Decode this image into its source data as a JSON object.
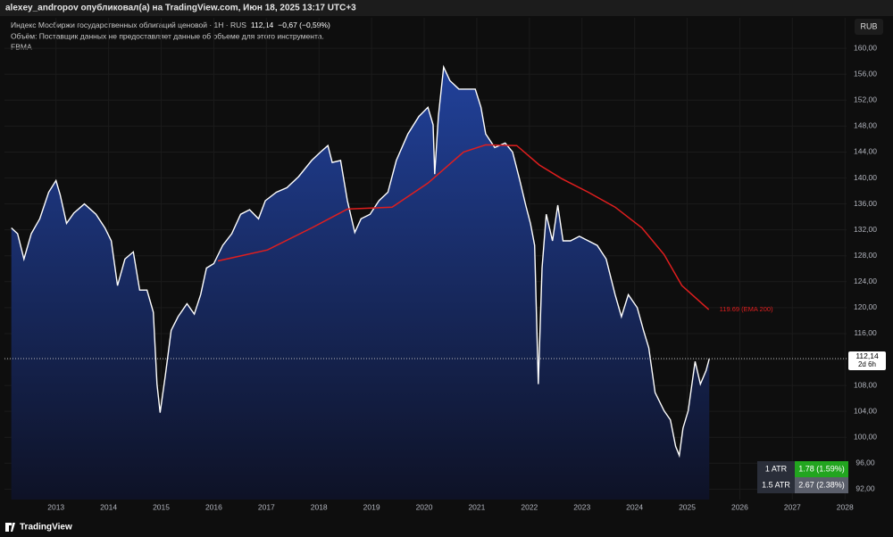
{
  "header": {
    "publisher": "alexey_andropov опубликовал(а) на TradingView.com, Июн 18, 2025 13:17 UTC+3"
  },
  "chart_data": {
    "type": "area",
    "title": "Индекс Мосбиржи государственных облигаций ценовой · 1H · RUS",
    "last_price": "112,14",
    "change": "−0,67 (−0,59%)",
    "subtitle": "Объём: Поставщик данных не предоставляет данные об объеме для этого инструмента.",
    "indicator": "FBMA",
    "currency": "RUB",
    "xlim": [
      2012.02,
      2028.03
    ],
    "xticks": [
      2013,
      2014,
      2015,
      2016,
      2017,
      2018,
      2019,
      2020,
      2021,
      2022,
      2023,
      2024,
      2025,
      2026,
      2027,
      2028
    ],
    "ylim": [
      90.4,
      164.7
    ],
    "yticks": [
      {
        "value": 92,
        "label": "92,00"
      },
      {
        "value": 96,
        "label": "96,00"
      },
      {
        "value": 100,
        "label": "100,00"
      },
      {
        "value": 104,
        "label": "104,00"
      },
      {
        "value": 108,
        "label": "108,00"
      },
      {
        "value": 112,
        "label": "112,00"
      },
      {
        "value": 116,
        "label": "116,00"
      },
      {
        "value": 120,
        "label": "120,00"
      },
      {
        "value": 124,
        "label": "124,00"
      },
      {
        "value": 128,
        "label": "128,00"
      },
      {
        "value": 132,
        "label": "132,00"
      },
      {
        "value": 136,
        "label": "136,00"
      },
      {
        "value": 140,
        "label": "140,00"
      },
      {
        "value": 144,
        "label": "144,00"
      },
      {
        "value": 148,
        "label": "148,00"
      },
      {
        "value": 152,
        "label": "152,00"
      },
      {
        "value": 156,
        "label": "156,00"
      },
      {
        "value": 160,
        "label": "160,00"
      }
    ],
    "grid": true,
    "series": [
      {
        "color": "#ffffff",
        "fill": "#1f3a8f",
        "x": [
          2012.15,
          2012.27,
          2012.39,
          2012.53,
          2012.69,
          2012.86,
          2013.0,
          2013.08,
          2013.2,
          2013.34,
          2013.54,
          2013.76,
          2013.93,
          2014.05,
          2014.17,
          2014.31,
          2014.47,
          2014.59,
          2014.73,
          2014.85,
          2014.92,
          2014.98,
          2015.08,
          2015.19,
          2015.32,
          2015.49,
          2015.63,
          2015.75,
          2015.86,
          2016.0,
          2016.17,
          2016.34,
          2016.51,
          2016.68,
          2016.85,
          2016.98,
          2017.19,
          2017.39,
          2017.61,
          2017.86,
          2018.03,
          2018.17,
          2018.25,
          2018.41,
          2018.54,
          2018.68,
          2018.8,
          2018.97,
          2019.14,
          2019.31,
          2019.47,
          2019.69,
          2019.9,
          2020.07,
          2020.17,
          2020.2,
          2020.27,
          2020.37,
          2020.49,
          2020.66,
          2020.83,
          2020.97,
          2021.08,
          2021.17,
          2021.34,
          2021.54,
          2021.68,
          2021.81,
          2021.93,
          2022.02,
          2022.1,
          2022.17,
          2022.24,
          2022.32,
          2022.44,
          2022.54,
          2022.64,
          2022.78,
          2022.95,
          2023.12,
          2023.29,
          2023.46,
          2023.63,
          2023.75,
          2023.88,
          2024.05,
          2024.17,
          2024.27,
          2024.39,
          2024.56,
          2024.68,
          2024.78,
          2024.85,
          2024.92,
          2025.02,
          2025.15,
          2025.25,
          2025.36,
          2025.42
        ],
        "values": [
          132.3,
          131.4,
          127.5,
          131.4,
          133.7,
          137.8,
          139.6,
          137.4,
          133.0,
          134.6,
          136.0,
          134.4,
          132.3,
          130.3,
          123.4,
          127.5,
          128.6,
          122.7,
          122.7,
          119.3,
          108.2,
          103.8,
          109.6,
          116.5,
          118.6,
          120.6,
          119.0,
          122.0,
          126.1,
          126.8,
          129.6,
          131.4,
          134.4,
          135.1,
          133.7,
          136.5,
          137.8,
          138.5,
          140.2,
          142.7,
          144.0,
          145.0,
          142.4,
          142.7,
          136.5,
          131.6,
          133.7,
          134.4,
          136.5,
          137.8,
          142.7,
          146.8,
          149.5,
          150.9,
          148.2,
          140.6,
          149.5,
          157.1,
          155.0,
          153.7,
          153.7,
          153.7,
          150.9,
          146.8,
          144.7,
          145.4,
          144.0,
          139.9,
          135.8,
          133.0,
          129.6,
          108.2,
          126.1,
          134.4,
          130.3,
          135.8,
          130.3,
          130.3,
          131.0,
          130.3,
          129.6,
          127.5,
          122.0,
          118.6,
          122.0,
          120.0,
          116.5,
          113.8,
          106.9,
          104.1,
          102.7,
          98.6,
          97.2,
          101.4,
          104.1,
          111.7,
          108.2,
          110.3,
          112.14
        ],
        "value_labels": {
          "last": "112,14",
          "age": "2d 6h"
        }
      },
      {
        "color": "#e01e1e",
        "x": [
          2016.08,
          2017.02,
          2017.86,
          2018.54,
          2019.39,
          2020.07,
          2020.75,
          2021.17,
          2021.76,
          2022.19,
          2022.61,
          2023.12,
          2023.63,
          2024.14,
          2024.56,
          2024.9,
          2025.41
        ],
        "values": [
          127.2,
          128.9,
          132.3,
          135.2,
          135.5,
          139.2,
          144.0,
          145.1,
          145.0,
          142.0,
          139.9,
          137.8,
          135.5,
          132.3,
          128.2,
          123.4,
          119.69
        ],
        "value_labels": {
          "last": "119.69 (EMA 200)"
        }
      }
    ]
  },
  "atr": {
    "rows": [
      [
        "1 ATR",
        "1.78 (1.59%)"
      ],
      [
        "1.5 ATR",
        "2.67 (2.38%)"
      ]
    ]
  },
  "footer": {
    "brand": "TradingView"
  }
}
